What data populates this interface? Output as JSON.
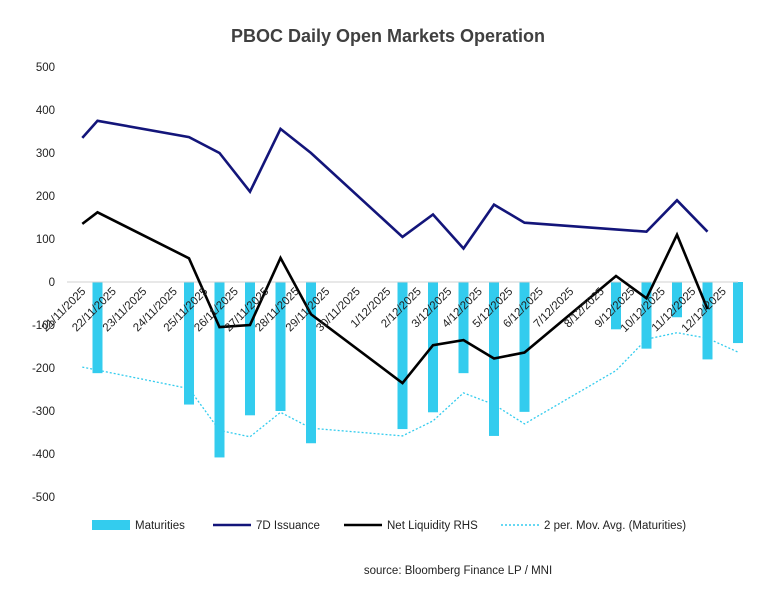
{
  "chart_data": {
    "type": "bar",
    "title": "PBOC Daily Open Markets Operation",
    "source": "source: Bloomberg Finance LP / MNI",
    "ylim": [
      -500,
      500
    ],
    "yticks": [
      500,
      400,
      300,
      200,
      100,
      0,
      -100,
      -200,
      -300,
      -400,
      -500
    ],
    "ytick_labels": [
      "500",
      "400",
      "300",
      "200",
      "100",
      "0",
      "-100",
      "-200",
      "-300",
      "-400",
      "-500"
    ],
    "x_index_range": [
      -0.5,
      21.5
    ],
    "categories": [
      "21/11/2025",
      "22/11/2025",
      "23/11/2025",
      "24/11/2025",
      "25/11/2025",
      "26/11/2025",
      "27/11/2025",
      "28/11/2025",
      "29/11/2025",
      "30/11/2025",
      "1/12/2025",
      "2/12/2025",
      "3/12/2025",
      "4/12/2025",
      "5/12/2025",
      "6/12/2025",
      "7/12/2025",
      "8/12/2025",
      "9/12/2025",
      "10/12/2025",
      "11/12/2025",
      "12/12/2025"
    ],
    "series": [
      {
        "name": "Maturities",
        "type": "bar",
        "color": "#33CCEE",
        "points": [
          [
            0.5,
            -212
          ],
          [
            3.5,
            -285
          ],
          [
            4.5,
            -408
          ],
          [
            5.5,
            -310
          ],
          [
            6.5,
            -300
          ],
          [
            7.5,
            -375
          ],
          [
            10.5,
            -342
          ],
          [
            11.5,
            -303
          ],
          [
            12.5,
            -212
          ],
          [
            13.5,
            -358
          ],
          [
            14.5,
            -302
          ],
          [
            17.5,
            -110
          ],
          [
            18.5,
            -155
          ],
          [
            19.5,
            -82
          ],
          [
            20.5,
            -180
          ],
          [
            21.5,
            -142
          ]
        ]
      },
      {
        "name": "7D Issuance",
        "type": "line",
        "color": "#13157A",
        "points": [
          [
            0,
            335
          ],
          [
            0.5,
            375
          ],
          [
            3.5,
            337
          ],
          [
            4.5,
            300
          ],
          [
            5.5,
            210
          ],
          [
            6.5,
            356
          ],
          [
            7.5,
            300
          ],
          [
            10.5,
            105
          ],
          [
            11.5,
            157
          ],
          [
            12.5,
            78
          ],
          [
            13.5,
            180
          ],
          [
            14.5,
            138
          ],
          [
            18.5,
            117
          ],
          [
            19.5,
            190
          ],
          [
            20.5,
            117
          ]
        ]
      },
      {
        "name": "Net Liquidity RHS",
        "type": "line",
        "color": "#000000",
        "points": [
          [
            0,
            135
          ],
          [
            0.5,
            162
          ],
          [
            3.5,
            55
          ],
          [
            4.5,
            -105
          ],
          [
            5.5,
            -100
          ],
          [
            6.5,
            56
          ],
          [
            7.5,
            -75
          ],
          [
            10.5,
            -235
          ],
          [
            11.5,
            -147
          ],
          [
            12.5,
            -135
          ],
          [
            13.5,
            -178
          ],
          [
            14.5,
            -164
          ],
          [
            17.5,
            14
          ],
          [
            18.5,
            -38
          ],
          [
            19.5,
            110
          ],
          [
            20.5,
            -63
          ]
        ]
      },
      {
        "name": "2 per. Mov. Avg. (Maturities)",
        "type": "line",
        "style": "dotted",
        "color": "#33CCEE",
        "points": [
          [
            0,
            -198
          ],
          [
            0.5,
            -205
          ],
          [
            3.5,
            -248
          ],
          [
            4.5,
            -345
          ],
          [
            5.5,
            -360
          ],
          [
            6.5,
            -303
          ],
          [
            7.5,
            -340
          ],
          [
            10.5,
            -358
          ],
          [
            11.5,
            -323
          ],
          [
            12.5,
            -258
          ],
          [
            13.5,
            -285
          ],
          [
            14.5,
            -330
          ],
          [
            17.5,
            -206
          ],
          [
            18.5,
            -133
          ],
          [
            19.5,
            -118
          ],
          [
            20.5,
            -131
          ],
          [
            21.5,
            -163
          ]
        ]
      }
    ],
    "legend": {
      "position": "bottom",
      "entries": [
        "Maturities",
        "7D Issuance",
        "Net Liquidity RHS",
        "2 per. Mov. Avg. (Maturities)"
      ]
    }
  }
}
